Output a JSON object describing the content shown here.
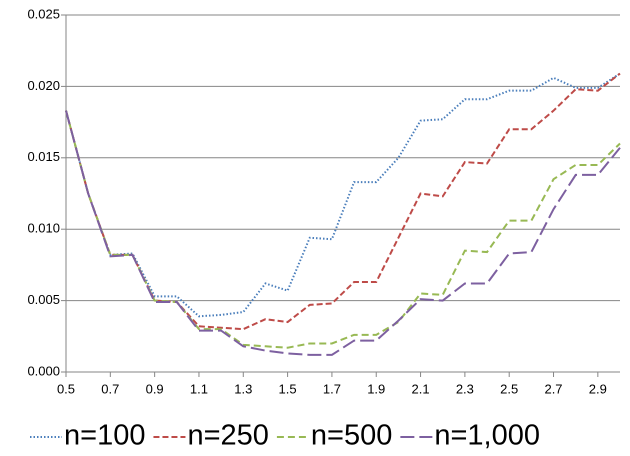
{
  "chart_data": {
    "type": "line",
    "x": [
      0.5,
      0.6,
      0.7,
      0.8,
      0.9,
      1.0,
      1.1,
      1.2,
      1.3,
      1.4,
      1.5,
      1.6,
      1.7,
      1.8,
      1.9,
      2.0,
      2.1,
      2.2,
      2.3,
      2.4,
      2.5,
      2.6,
      2.7,
      2.8,
      2.9,
      3.0
    ],
    "series": [
      {
        "name": "n=100",
        "color": "#4a7ebb",
        "values": [
          0.0183,
          0.0125,
          0.0082,
          0.0083,
          0.0053,
          0.0053,
          0.0039,
          0.004,
          0.0042,
          0.0062,
          0.0057,
          0.0094,
          0.0093,
          0.0133,
          0.0133,
          0.015,
          0.0176,
          0.0177,
          0.0191,
          0.0191,
          0.0197,
          0.0197,
          0.0206,
          0.0199,
          0.0199,
          0.0209
        ]
      },
      {
        "name": "n=250",
        "color": "#be4b48",
        "values": [
          0.0183,
          0.0125,
          0.0082,
          0.0082,
          0.005,
          0.0049,
          0.0032,
          0.0031,
          0.003,
          0.0037,
          0.0035,
          0.0047,
          0.0048,
          0.0063,
          0.0063,
          0.0094,
          0.0125,
          0.0123,
          0.0147,
          0.0146,
          0.017,
          0.017,
          0.0183,
          0.0198,
          0.0197,
          0.0209
        ]
      },
      {
        "name": "n=500",
        "color": "#98b954",
        "values": [
          0.0183,
          0.0125,
          0.0082,
          0.0082,
          0.005,
          0.0049,
          0.003,
          0.003,
          0.0019,
          0.0018,
          0.0017,
          0.002,
          0.002,
          0.0026,
          0.0026,
          0.0035,
          0.0055,
          0.0054,
          0.0085,
          0.0084,
          0.0106,
          0.0106,
          0.0135,
          0.0145,
          0.0145,
          0.016
        ]
      },
      {
        "name": "n=1,000",
        "color": "#7d60a0",
        "values": [
          0.0183,
          0.0125,
          0.0081,
          0.0082,
          0.0049,
          0.0049,
          0.0029,
          0.0029,
          0.0018,
          0.0015,
          0.0013,
          0.0012,
          0.0012,
          0.0022,
          0.0022,
          0.0036,
          0.0051,
          0.005,
          0.0062,
          0.0062,
          0.0083,
          0.0084,
          0.0114,
          0.0138,
          0.0138,
          0.0157
        ]
      }
    ],
    "xlim": [
      0.5,
      3.0
    ],
    "xticks": [
      0.5,
      0.7,
      0.9,
      1.1,
      1.3,
      1.5,
      1.7,
      1.9,
      2.1,
      2.3,
      2.5,
      2.7,
      2.9
    ],
    "ylim": [
      0,
      0.025
    ],
    "yticks": [
      {
        "value": 0,
        "label": "0.000"
      },
      0.005,
      {
        "value": 0.01,
        "label": "0.010"
      },
      0.015,
      {
        "value": 0.02,
        "label": "0.020"
      },
      0.025
    ],
    "grid": true
  }
}
